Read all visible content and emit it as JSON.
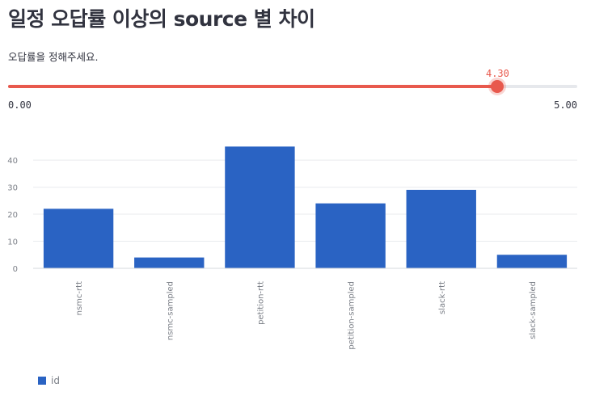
{
  "title": "일정 오답률 이상의 source 별 차이",
  "slider": {
    "label": "오답률을 정해주세요.",
    "value": 4.3,
    "value_text": "4.30",
    "min": 0,
    "max": 5,
    "min_text": "0.00",
    "max_text": "5.00",
    "color": "#e8594d"
  },
  "chart_data": {
    "type": "bar",
    "categories": [
      "nsmc-rtt",
      "nsmc-sampled",
      "petition-rtt",
      "petition-sampled",
      "slack-rtt",
      "slack-sampled"
    ],
    "series": [
      {
        "name": "id",
        "values": [
          22,
          4,
          45,
          24,
          29,
          5
        ],
        "color": "#2a63c3"
      }
    ],
    "ylim": [
      0,
      46
    ],
    "yticks": [
      0,
      10,
      20,
      30,
      40
    ],
    "grid": true,
    "legend_position": "bottom-left"
  },
  "legend": {
    "label": "id"
  }
}
